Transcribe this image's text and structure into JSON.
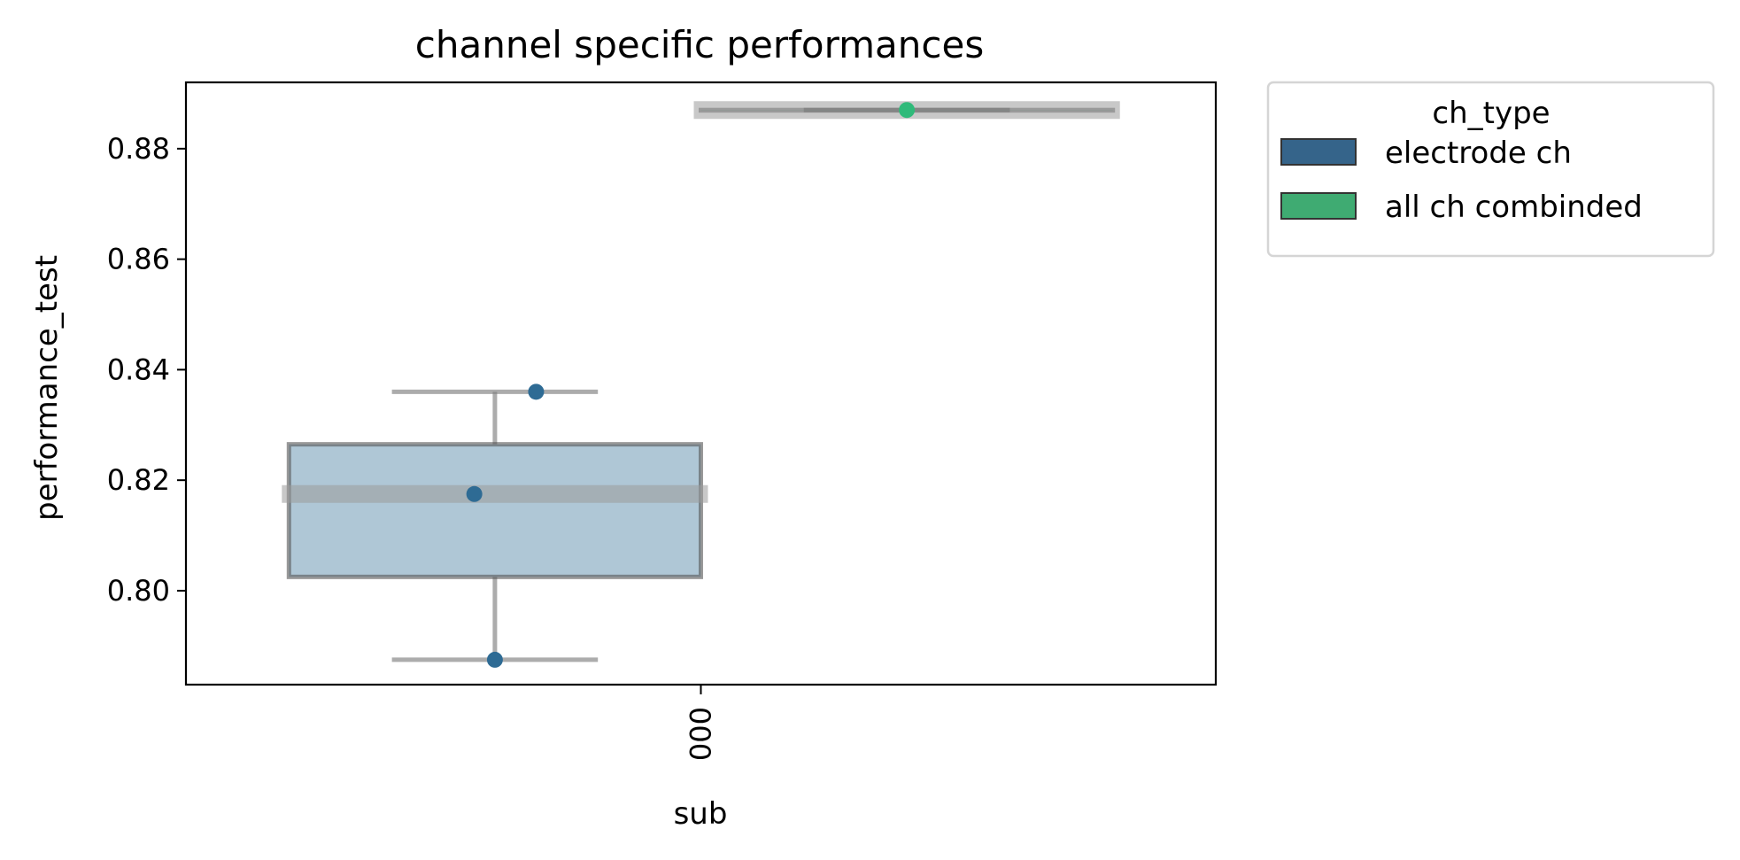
{
  "chart_data": {
    "type": "box",
    "title": "channel specific performances",
    "xlabel": "sub",
    "ylabel": "performance_test",
    "categories": [
      "000"
    ],
    "ylim": [
      0.783,
      0.892
    ],
    "yticks": [
      0.8,
      0.82,
      0.84,
      0.86,
      0.88
    ],
    "ytick_labels": [
      "0.80",
      "0.82",
      "0.84",
      "0.86",
      "0.88"
    ],
    "legend": {
      "title": "ch_type",
      "placement": "outside-top-right",
      "entries": [
        {
          "label": "electrode ch",
          "color": "#35648a"
        },
        {
          "label": "all ch combinded",
          "color": "#3fab72"
        }
      ]
    },
    "series": [
      {
        "name": "electrode ch",
        "color": "#2e6b94",
        "box": {
          "q1": 0.8025,
          "median": 0.8175,
          "q3": 0.8265,
          "whisker_low": 0.7875,
          "whisker_high": 0.836
        },
        "points": [
          0.836,
          0.8175,
          0.7875
        ]
      },
      {
        "name": "all ch combinded",
        "color": "#2fba7a",
        "box": {
          "q1": 0.887,
          "median": 0.887,
          "q3": 0.887,
          "whisker_low": 0.887,
          "whisker_high": 0.887
        },
        "points": [
          0.887
        ]
      }
    ]
  }
}
